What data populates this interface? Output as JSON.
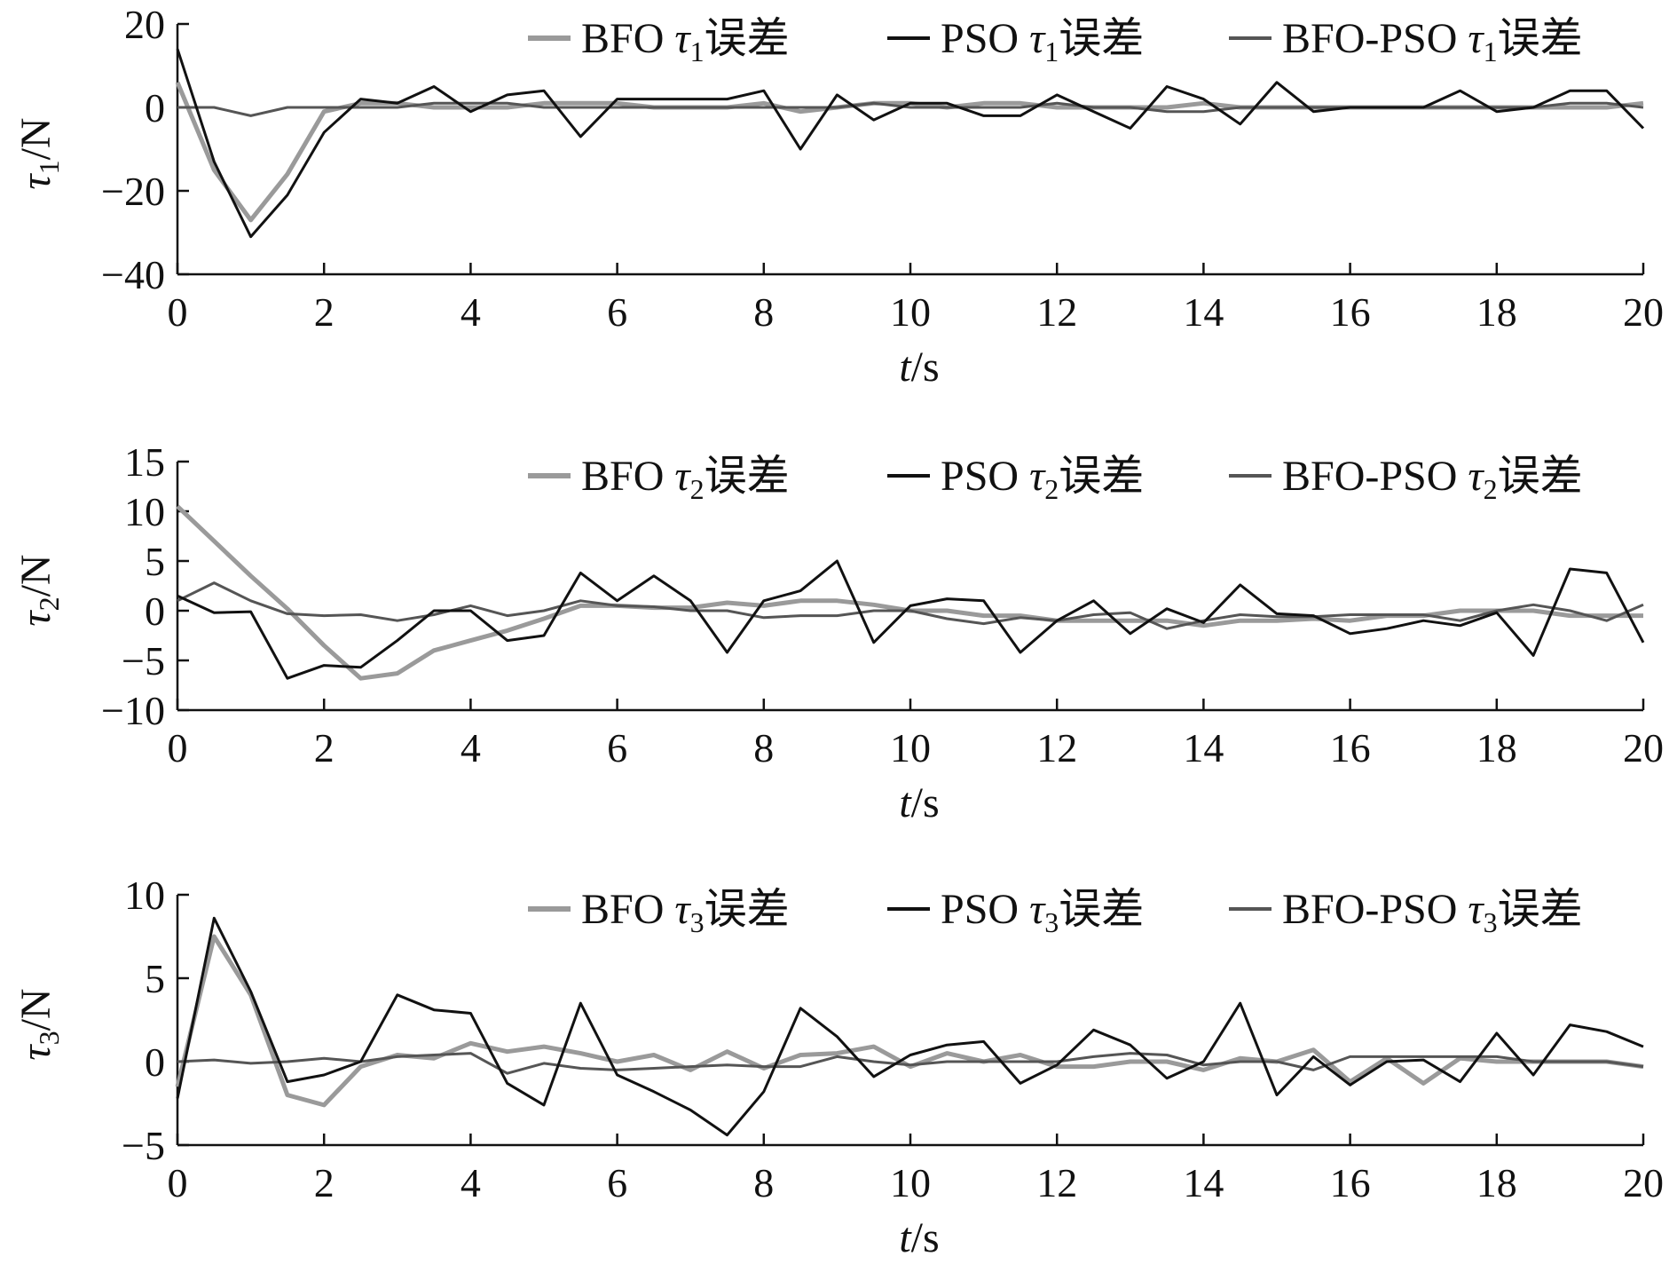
{
  "colors": {
    "bfo": "#9a9a9a",
    "pso": "#111111",
    "bfopso": "#555555",
    "axis": "#111111"
  },
  "legend_suffix": "误差",
  "chart_data": [
    {
      "type": "line",
      "ylabel": {
        "main": "τ",
        "sub": "1",
        "unit": "/N"
      },
      "xlabel": {
        "main": "t",
        "unit": "/s"
      },
      "xlim": [
        0,
        20
      ],
      "ylim": [
        -40,
        20
      ],
      "xticks": [
        0,
        2,
        4,
        6,
        8,
        10,
        12,
        14,
        16,
        18,
        20
      ],
      "yticks": [
        -40,
        -20,
        0,
        20
      ],
      "ytick_labels": [
        "−40",
        "−20",
        "0",
        "20"
      ],
      "x": [
        0,
        0.5,
        1,
        1.5,
        2,
        2.5,
        3,
        3.5,
        4,
        4.5,
        5,
        5.5,
        6,
        6.5,
        7,
        7.5,
        8,
        8.5,
        9,
        9.5,
        10,
        10.5,
        11,
        11.5,
        12,
        12.5,
        13,
        13.5,
        14,
        14.5,
        15,
        15.5,
        16,
        16.5,
        17,
        17.5,
        18,
        18.5,
        19,
        19.5,
        20
      ],
      "series": [
        {
          "name": "BFO",
          "sym": "τ",
          "sub": "1",
          "color_key": "bfo",
          "values": [
            6,
            -15,
            -27,
            -16,
            -1,
            1,
            1,
            0,
            0,
            0,
            1,
            1,
            1,
            0,
            0,
            0,
            1,
            -1,
            0,
            1,
            1,
            0,
            1,
            1,
            0,
            0,
            0,
            0,
            1,
            0,
            0,
            0,
            0,
            0,
            0,
            0,
            0,
            0,
            0,
            0,
            1
          ]
        },
        {
          "name": "PSO",
          "sym": "τ",
          "sub": "1",
          "color_key": "pso",
          "values": [
            14,
            -13,
            -31,
            -21,
            -6,
            2,
            1,
            5,
            -1,
            3,
            4,
            -7,
            2,
            2,
            2,
            2,
            4,
            -10,
            3,
            -3,
            1,
            1,
            -2,
            -2,
            3,
            -1,
            -5,
            5,
            2,
            -4,
            6,
            -1,
            0,
            0,
            0,
            4,
            -1,
            0,
            4,
            4,
            -5
          ]
        },
        {
          "name": "BFO-PSO",
          "sym": "τ",
          "sub": "1",
          "color_key": "bfopso",
          "values": [
            0,
            0,
            -2,
            0,
            0,
            0,
            0,
            1,
            1,
            1,
            0,
            0,
            0,
            0,
            0,
            0,
            0,
            0,
            0,
            1,
            0,
            0,
            0,
            0,
            1,
            0,
            0,
            -1,
            -1,
            0,
            0,
            0,
            0,
            0,
            0,
            0,
            0,
            0,
            1,
            1,
            0
          ]
        }
      ]
    },
    {
      "type": "line",
      "ylabel": {
        "main": "τ",
        "sub": "2",
        "unit": "/N"
      },
      "xlabel": {
        "main": "t",
        "unit": "/s"
      },
      "xlim": [
        0,
        20
      ],
      "ylim": [
        -10,
        15
      ],
      "xticks": [
        0,
        2,
        4,
        6,
        8,
        10,
        12,
        14,
        16,
        18,
        20
      ],
      "yticks": [
        -10,
        -5,
        0,
        5,
        10,
        15
      ],
      "ytick_labels": [
        "−10",
        "−5",
        "0",
        "5",
        "10",
        "15"
      ],
      "x": [
        0,
        0.5,
        1,
        1.5,
        2,
        2.5,
        3,
        3.5,
        4,
        4.5,
        5,
        5.5,
        6,
        6.5,
        7,
        7.5,
        8,
        8.5,
        9,
        9.5,
        10,
        10.5,
        11,
        11.5,
        12,
        12.5,
        13,
        13.5,
        14,
        14.5,
        15,
        15.5,
        16,
        16.5,
        17,
        17.5,
        18,
        18.5,
        19,
        19.5,
        20
      ],
      "series": [
        {
          "name": "BFO",
          "sym": "τ",
          "sub": "2",
          "color_key": "bfo",
          "values": [
            10.5,
            7,
            3.5,
            0.2,
            -3.5,
            -6.8,
            -6.3,
            -4,
            -3,
            -2,
            -0.8,
            0.5,
            0.5,
            0.3,
            0.3,
            0.8,
            0.5,
            1,
            1,
            0.6,
            0,
            0,
            -0.5,
            -0.5,
            -1,
            -1,
            -1,
            -1,
            -1.5,
            -1,
            -1,
            -0.8,
            -1,
            -0.5,
            -0.5,
            0,
            0,
            0,
            -0.5,
            -0.5,
            -0.5
          ]
        },
        {
          "name": "PSO",
          "sym": "τ",
          "sub": "2",
          "color_key": "pso",
          "values": [
            1.5,
            -0.2,
            -0.1,
            -6.8,
            -5.5,
            -5.7,
            -3,
            0,
            0,
            -3,
            -2.5,
            3.8,
            1,
            3.5,
            1,
            -4.2,
            1,
            2,
            5,
            -3.2,
            0.5,
            1.2,
            1,
            -4.2,
            -1,
            1,
            -2.3,
            0.2,
            -1.2,
            2.6,
            -0.3,
            -0.5,
            -2.3,
            -1.8,
            -1,
            -1.5,
            -0.2,
            -4.5,
            4.2,
            3.8,
            -3.2
          ]
        },
        {
          "name": "BFO-PSO",
          "sym": "τ",
          "sub": "2",
          "color_key": "bfopso",
          "values": [
            1,
            2.8,
            1,
            -0.3,
            -0.5,
            -0.4,
            -1,
            -0.4,
            0.5,
            -0.5,
            0,
            1,
            0.5,
            0.4,
            0,
            0,
            -0.7,
            -0.5,
            -0.5,
            0,
            0,
            -0.8,
            -1.3,
            -0.7,
            -1,
            -0.4,
            -0.2,
            -1.8,
            -1,
            -0.4,
            -0.6,
            -0.6,
            -0.4,
            -0.4,
            -0.4,
            -1,
            0,
            0.6,
            0,
            -1,
            0.6
          ]
        }
      ]
    },
    {
      "type": "line",
      "ylabel": {
        "main": "τ",
        "sub": "3",
        "unit": "/N"
      },
      "xlabel": {
        "main": "t",
        "unit": "/s"
      },
      "xlim": [
        0,
        20
      ],
      "ylim": [
        -5,
        10
      ],
      "xticks": [
        0,
        2,
        4,
        6,
        8,
        10,
        12,
        14,
        16,
        18,
        20
      ],
      "yticks": [
        -5,
        0,
        5,
        10
      ],
      "ytick_labels": [
        "−5",
        "0",
        "5",
        "10"
      ],
      "x": [
        0,
        0.5,
        1,
        1.5,
        2,
        2.5,
        3,
        3.5,
        4,
        4.5,
        5,
        5.5,
        6,
        6.5,
        7,
        7.5,
        8,
        8.5,
        9,
        9.5,
        10,
        10.5,
        11,
        11.5,
        12,
        12.5,
        13,
        13.5,
        14,
        14.5,
        15,
        15.5,
        16,
        16.5,
        17,
        17.5,
        18,
        18.5,
        19,
        19.5,
        20
      ],
      "series": [
        {
          "name": "BFO",
          "sym": "τ",
          "sub": "3",
          "color_key": "bfo",
          "values": [
            -1.5,
            7.5,
            4,
            -2,
            -2.6,
            -0.3,
            0.4,
            0.2,
            1.1,
            0.6,
            0.9,
            0.5,
            0,
            0.4,
            -0.5,
            0.6,
            -0.4,
            0.4,
            0.5,
            0.9,
            -0.3,
            0.5,
            0,
            0.4,
            -0.3,
            -0.3,
            0,
            0,
            -0.5,
            0.2,
            0,
            0.7,
            -1.2,
            0.2,
            -1.3,
            0.2,
            0,
            0,
            0,
            0,
            -0.3
          ]
        },
        {
          "name": "PSO",
          "sym": "τ",
          "sub": "3",
          "color_key": "pso",
          "values": [
            -2.2,
            8.6,
            4.2,
            -1.2,
            -0.8,
            0,
            4,
            3.1,
            2.9,
            -1.3,
            -2.6,
            3.5,
            -0.8,
            -1.8,
            -2.9,
            -4.4,
            -1.8,
            3.2,
            1.5,
            -0.9,
            0.4,
            1,
            1.2,
            -1.3,
            -0.2,
            1.9,
            1,
            -1,
            0,
            3.5,
            -2,
            0.3,
            -1.4,
            0,
            0.1,
            -1.2,
            1.7,
            -0.8,
            2.2,
            1.8,
            0.9
          ]
        },
        {
          "name": "BFO-PSO",
          "sym": "τ",
          "sub": "3",
          "color_key": "bfopso",
          "values": [
            0,
            0.1,
            -0.1,
            0,
            0.2,
            0,
            0.3,
            0.4,
            0.5,
            -0.7,
            -0.1,
            -0.4,
            -0.5,
            -0.4,
            -0.3,
            -0.2,
            -0.3,
            -0.3,
            0.3,
            0,
            -0.2,
            0,
            0,
            0,
            0,
            0.3,
            0.5,
            0.4,
            -0.2,
            0,
            0,
            -0.5,
            0.3,
            0.3,
            0.3,
            0.3,
            0.3,
            0,
            0,
            0,
            -0.3
          ]
        }
      ]
    }
  ]
}
